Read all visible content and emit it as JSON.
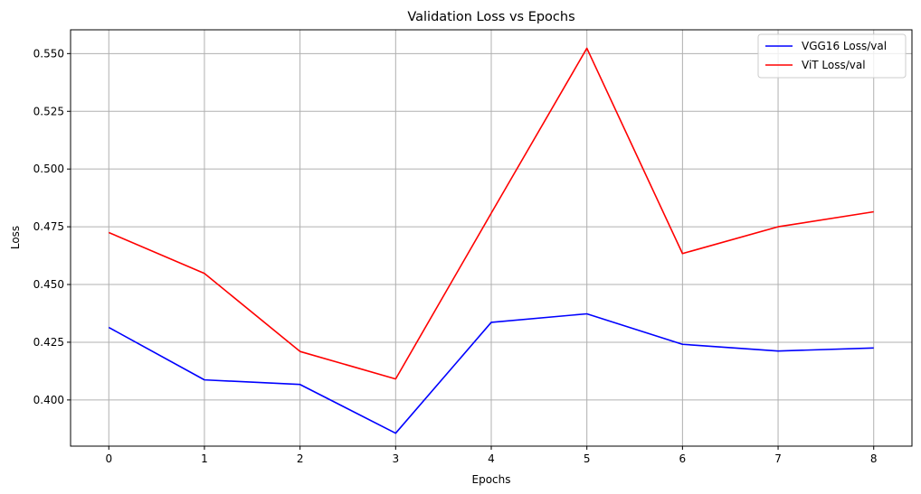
{
  "chart_data": {
    "type": "line",
    "title": "Validation Loss vs Epochs",
    "xlabel": "Epochs",
    "ylabel": "Loss",
    "x": [
      0,
      1,
      2,
      3,
      4,
      5,
      6,
      7,
      8
    ],
    "xticks": [
      "0",
      "1",
      "2",
      "3",
      "4",
      "5",
      "6",
      "7",
      "8"
    ],
    "yticks": [
      "0.400",
      "0.425",
      "0.450",
      "0.475",
      "0.500",
      "0.525",
      "0.550"
    ],
    "ytick_values": [
      0.4,
      0.425,
      0.45,
      0.475,
      0.5,
      0.525,
      0.55
    ],
    "xlim": [
      -0.4,
      8.4
    ],
    "ylim": [
      0.38,
      0.5603
    ],
    "grid": true,
    "legend_position": "top-right",
    "series": [
      {
        "name": "VGG16 Loss/val",
        "color": "#0000ff",
        "values": [
          0.4314,
          0.4087,
          0.4067,
          0.3856,
          0.4336,
          0.4373,
          0.4241,
          0.4212,
          0.4225
        ]
      },
      {
        "name": "ViT Loss/val",
        "color": "#ff0000",
        "values": [
          0.4725,
          0.4548,
          0.421,
          0.4091,
          0.4809,
          0.5523,
          0.4634,
          0.475,
          0.4815
        ]
      }
    ]
  }
}
